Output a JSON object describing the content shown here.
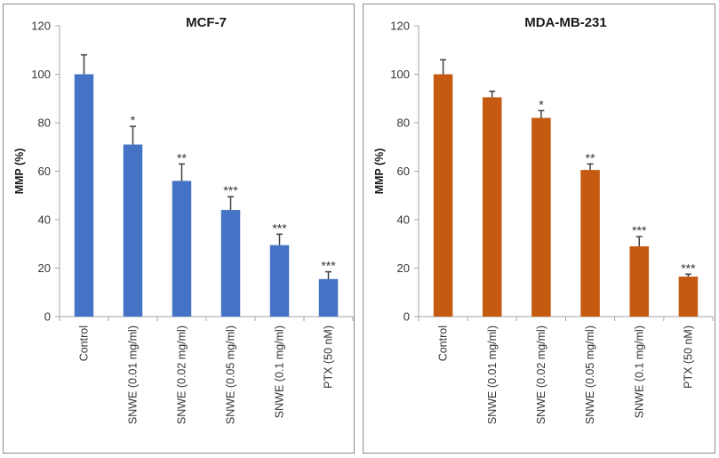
{
  "chart_data": [
    {
      "type": "bar",
      "title": "MCF-7",
      "xlabel": "",
      "ylabel": "MMP (%)",
      "ylim": [
        0,
        120
      ],
      "yticks": [
        0,
        20,
        40,
        60,
        80,
        100,
        120
      ],
      "grid": false,
      "color": "#4472C4",
      "categories": [
        "Control",
        "SNWE (0.01 mg/ml)",
        "SNWE (0.02 mg/ml)",
        "SNWE (0.05 mg/ml)",
        "SNWE (0.1 mg/ml)",
        "PTX (50 nM)"
      ],
      "values": [
        100,
        71,
        56,
        44,
        29.5,
        15.5
      ],
      "errors": [
        8,
        7.5,
        7,
        5.5,
        4.5,
        3
      ],
      "significance": [
        "",
        "*",
        "**",
        "***",
        "***",
        "***"
      ]
    },
    {
      "type": "bar",
      "title": "MDA-MB-231",
      "xlabel": "",
      "ylabel": "MMP (%)",
      "ylim": [
        0,
        120
      ],
      "yticks": [
        0,
        20,
        40,
        60,
        80,
        100,
        120
      ],
      "grid": false,
      "color": "#C55A11",
      "categories": [
        "Control",
        "SNWE (0.01 mg/ml)",
        "SNWE (0.02 mg/ml)",
        "SNWE (0.05 mg/ml)",
        "SNWE (0.1 mg/ml)",
        "PTX (50 nM)"
      ],
      "values": [
        100,
        90.5,
        82,
        60.5,
        29,
        16.5
      ],
      "errors": [
        6,
        2.5,
        3,
        2.5,
        4,
        1
      ],
      "significance": [
        "",
        "",
        "*",
        "**",
        "***",
        "***"
      ]
    }
  ]
}
